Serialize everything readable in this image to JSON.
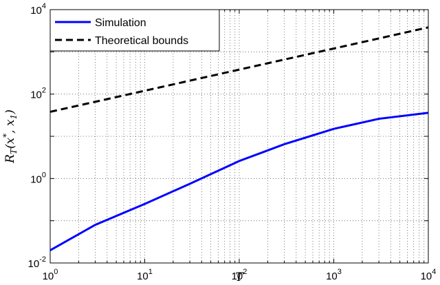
{
  "chart_data": {
    "type": "line",
    "x_scale": "log",
    "y_scale": "log",
    "xlabel": "T",
    "ylabel": "R_T(x*, x_1)",
    "xlim": [
      1,
      10000
    ],
    "ylim": [
      0.01,
      10000
    ],
    "grid": true,
    "legend_position": "top-left",
    "x_ticks": [
      {
        "base": "10",
        "exp": "0",
        "value": 1
      },
      {
        "base": "10",
        "exp": "1",
        "value": 10
      },
      {
        "base": "10",
        "exp": "2",
        "value": 100
      },
      {
        "base": "10",
        "exp": "3",
        "value": 1000
      },
      {
        "base": "10",
        "exp": "4",
        "value": 10000
      }
    ],
    "y_ticks": [
      {
        "base": "10",
        "exp": "-2",
        "value": 0.01
      },
      {
        "base": "10",
        "exp": "0",
        "value": 1
      },
      {
        "base": "10",
        "exp": "2",
        "value": 100
      },
      {
        "base": "10",
        "exp": "4",
        "value": 10000
      }
    ],
    "series": [
      {
        "name": "Simulation",
        "color": "#0000ff",
        "style": "solid",
        "points": [
          [
            1,
            0.02
          ],
          [
            3,
            0.08
          ],
          [
            10,
            0.25
          ],
          [
            30,
            0.75
          ],
          [
            100,
            2.6
          ],
          [
            300,
            6.5
          ],
          [
            1000,
            15
          ],
          [
            3000,
            26
          ],
          [
            10000,
            36
          ]
        ]
      },
      {
        "name": "Theoretical bounds",
        "color": "#000000",
        "style": "dashed",
        "points": [
          [
            1,
            38
          ],
          [
            10,
            120
          ],
          [
            100,
            380
          ],
          [
            1000,
            1200
          ],
          [
            10000,
            3800
          ]
        ]
      }
    ]
  }
}
